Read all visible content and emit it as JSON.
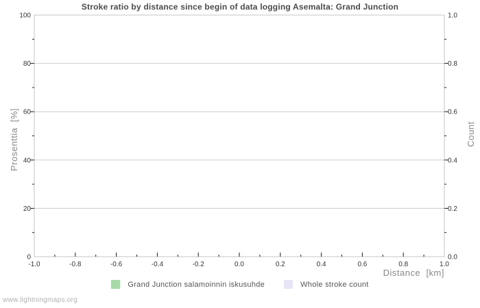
{
  "chart_data": {
    "type": "line",
    "title": "Stroke ratio by distance since begin of data logging Asemalta: Grand Junction",
    "xlabel": "Distance  [km]",
    "ylabel_left": "Prosenttia  [%]",
    "ylabel_right": "Count",
    "xlim": [
      -1.0,
      1.0
    ],
    "ylim_left": [
      0,
      100
    ],
    "ylim_right": [
      0.0,
      1.0
    ],
    "x_tick_labels": [
      "-1.0",
      "-0.8",
      "-0.6",
      "-0.4",
      "-0.2",
      "0.0",
      "0.2",
      "0.4",
      "0.6",
      "0.8",
      "1.0"
    ],
    "y_left_tick_labels": [
      "0",
      "20",
      "40",
      "60",
      "80",
      "100"
    ],
    "y_right_tick_labels": [
      "0.0",
      "0.2",
      "0.4",
      "0.6",
      "0.8",
      "1.0"
    ],
    "grid": "horizontal-major-only",
    "legend_position": "bottom-center",
    "legend": [
      {
        "label": "Grand Junction salamoinnin iskusuhde",
        "color": "#a9d9a9"
      },
      {
        "label": "Whole stroke count",
        "color": "#e6e6f8"
      }
    ],
    "series": [
      {
        "name": "Grand Junction salamoinnin iskusuhde",
        "axis": "left",
        "color": "#a9d9a9",
        "x": [],
        "values": []
      },
      {
        "name": "Whole stroke count",
        "axis": "right",
        "color": "#e6e6f8",
        "x": [],
        "values": []
      }
    ]
  },
  "colors": {
    "background": "#ffffff",
    "plot_border": "#c4c4c4",
    "gridline": "#cccccc",
    "tick": "#1a1a1a",
    "tick_label": "#333333",
    "axis_label": "#888888",
    "title_text": "#4a4a4a",
    "legend_text": "#555555",
    "watermark_text": "#b0b0b0"
  },
  "footer": {
    "watermark": "www.lightningmaps.org"
  }
}
